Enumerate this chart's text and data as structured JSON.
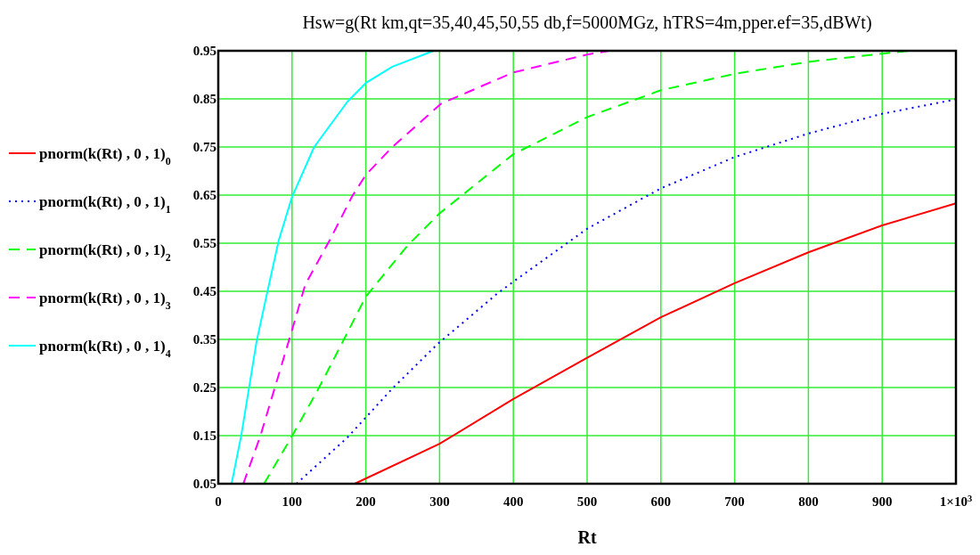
{
  "chart_data": {
    "type": "line",
    "title": "Hsw=g(Rt km,qt=35,40,45,50,55 db,f=5000MGz, hTRS=4m,pper.ef=35,dBWt)",
    "xlabel": "Rt",
    "xlim": [
      0,
      1000
    ],
    "ylim": [
      0.05,
      0.95
    ],
    "xticks": [
      0,
      100,
      200,
      300,
      400,
      500,
      600,
      700,
      800,
      900,
      {
        "value": 1000,
        "label": "1×10$^{3}$"
      }
    ],
    "yticks": [
      0.05,
      0.15,
      0.25,
      0.35,
      0.45,
      0.55,
      0.65,
      0.75,
      0.85,
      0.95
    ],
    "grid": true,
    "legend": "left",
    "marker": "none",
    "series": [
      {
        "name": "pnorm(k(Rt) , 0 , 1)$_{0}$",
        "color": "#ff0000",
        "line_style": "solid",
        "x": [
          185,
          300,
          400,
          500,
          600,
          700,
          800,
          900,
          1000
        ],
        "values": [
          0.05,
          0.133,
          0.226,
          0.312,
          0.396,
          0.467,
          0.531,
          0.587,
          0.633
        ]
      },
      {
        "name": "pnorm(k(Rt) , 0 , 1)$_{1}$",
        "color": "#0000ff",
        "line_style": "dotted",
        "x": [
          106,
          175,
          236,
          297,
          378,
          400,
          500,
          600,
          700,
          800,
          900,
          1000
        ],
        "values": [
          0.05,
          0.146,
          0.248,
          0.34,
          0.445,
          0.47,
          0.58,
          0.664,
          0.729,
          0.778,
          0.819,
          0.849
        ]
      },
      {
        "name": "pnorm(k(Rt) , 0 , 1)$_{2}$",
        "color": "#00ff00",
        "line_style": "dashed",
        "x": [
          62,
          100,
          136,
          169,
          200,
          256,
          300,
          400,
          500,
          600,
          700,
          800,
          900,
          937
        ],
        "values": [
          0.05,
          0.149,
          0.248,
          0.346,
          0.439,
          0.544,
          0.612,
          0.735,
          0.812,
          0.868,
          0.902,
          0.927,
          0.944,
          0.95
        ]
      },
      {
        "name": "pnorm(k(Rt) , 0 , 1)$_{3}$",
        "color": "#ff00ff",
        "line_style": "dashed",
        "x": [
          34,
          57,
          98,
          118,
          151,
          181,
          200,
          236,
          302,
          400,
          500,
          530
        ],
        "values": [
          0.05,
          0.149,
          0.359,
          0.464,
          0.556,
          0.646,
          0.692,
          0.75,
          0.84,
          0.905,
          0.942,
          0.95
        ]
      },
      {
        "name": "pnorm(k(Rt) , 0 , 1)$_{4}$",
        "color": "#00ffff",
        "line_style": "solid",
        "x": [
          18,
          31,
          52,
          66,
          82,
          100,
          130,
          175,
          200,
          236,
          292
        ],
        "values": [
          0.05,
          0.149,
          0.346,
          0.445,
          0.556,
          0.646,
          0.75,
          0.844,
          0.883,
          0.917,
          0.95
        ]
      }
    ]
  }
}
